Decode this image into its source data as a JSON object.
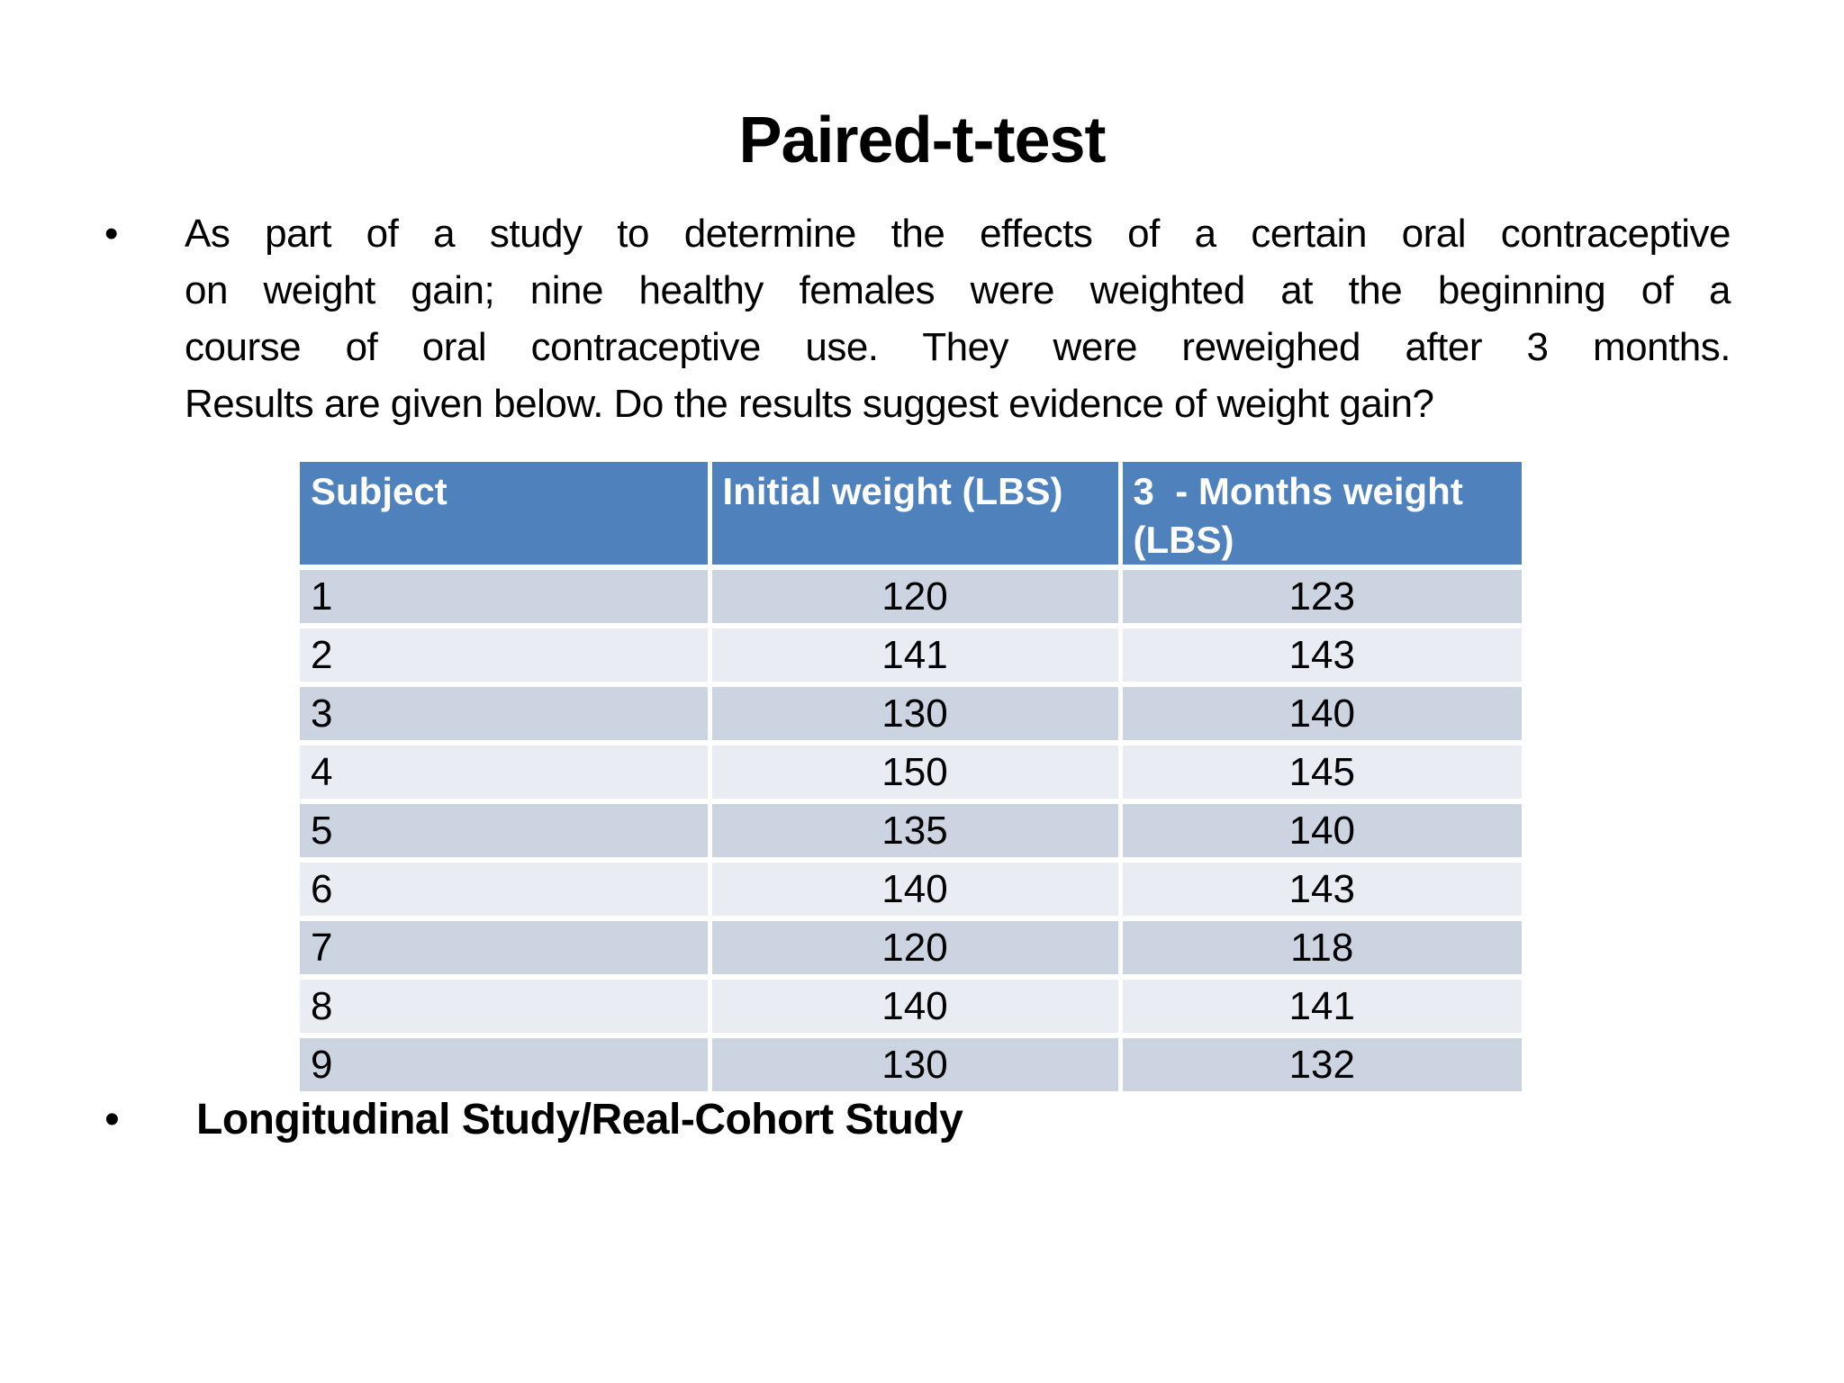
{
  "slide": {
    "title": "Paired-t-test",
    "bullet_marker": "•",
    "intro": {
      "lines": [
        "As part of a study to determine the effects of a certain oral contraceptive",
        "on weight gain; nine healthy females were weighted at the beginning of a",
        "course of oral contraceptive use. They were reweighed after 3 months.",
        "Results are given below. Do the results suggest evidence of weight gain?"
      ],
      "full_text": "As part of a study to determine the effects of a certain oral contraceptive on weight gain; nine healthy females were weighted at the beginning of a course of oral contraceptive use. They were reweighed after 3 months. Results are given below. Do the results suggest evidence of weight gain?"
    },
    "footer_bullet": "Longitudinal Study/Real-Cohort Study"
  },
  "table": {
    "headers": [
      "Subject",
      "Initial weight (LBS)",
      "3  - Months weight (LBS)"
    ],
    "rows": [
      [
        "1",
        "120",
        "123"
      ],
      [
        "2",
        "141",
        "143"
      ],
      [
        "3",
        "130",
        "140"
      ],
      [
        "4",
        "150",
        "145"
      ],
      [
        "5",
        "135",
        "140"
      ],
      [
        "6",
        "140",
        "143"
      ],
      [
        "7",
        "120",
        "118"
      ],
      [
        "8",
        "140",
        "141"
      ],
      [
        "9",
        "130",
        "132"
      ]
    ]
  },
  "colors": {
    "background": "#ffffff",
    "header_bg": "#4f81bd",
    "header_text": "#ffffff",
    "row_dark": "#cdd4e1",
    "row_light": "#e9ecf2",
    "body_text": "#000000"
  }
}
